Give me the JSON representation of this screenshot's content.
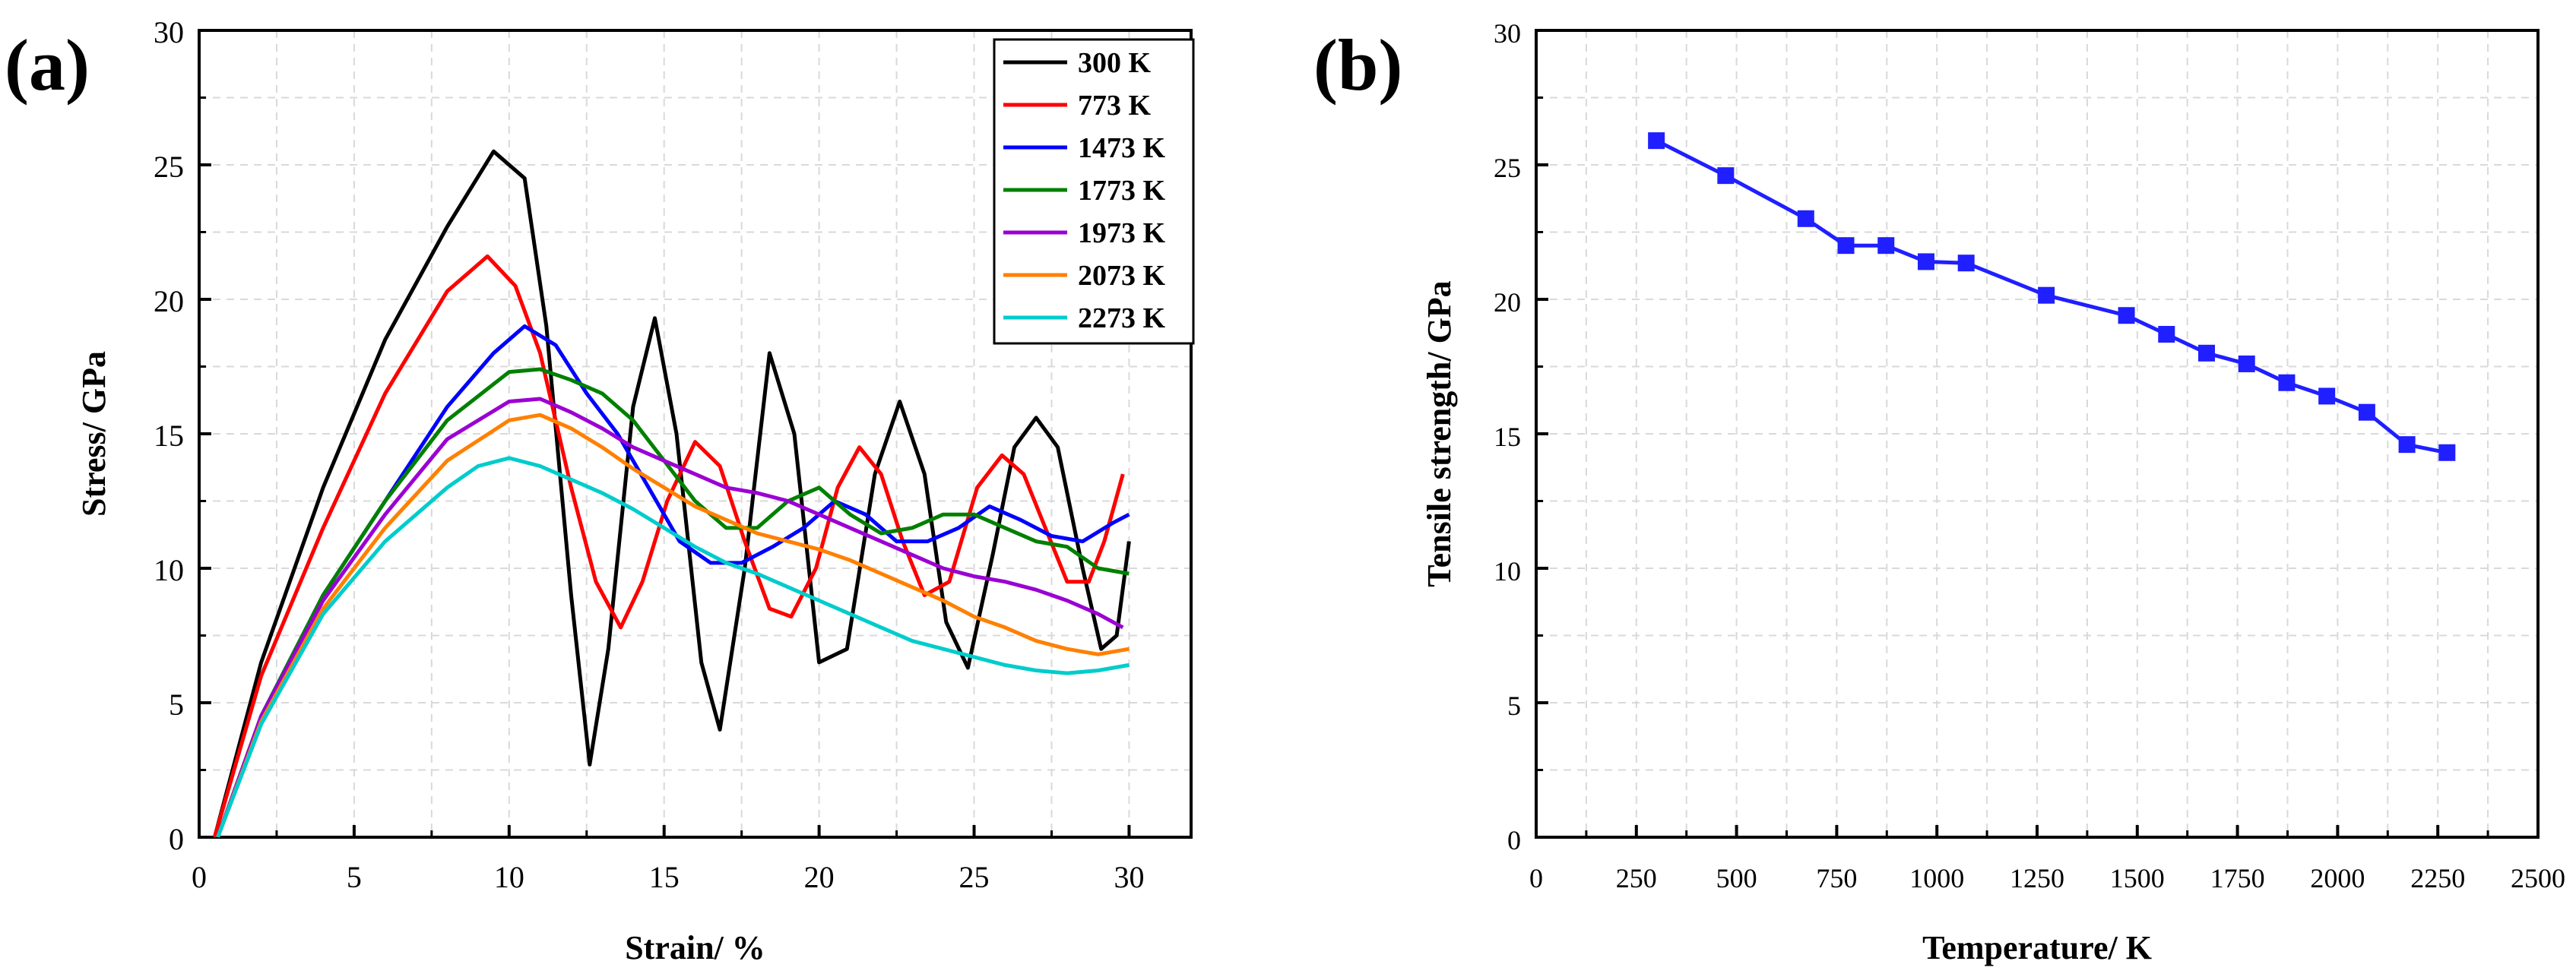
{
  "panels": [
    {
      "label": "(a)"
    },
    {
      "label": "(b)"
    }
  ],
  "chart_data": [
    {
      "type": "line",
      "xlabel": "Strain/ %",
      "ylabel": "Stress/ GPa",
      "xlim": [
        0,
        32
      ],
      "ylim": [
        0,
        30
      ],
      "xticks": [
        0,
        5,
        10,
        15,
        20,
        25,
        30
      ],
      "yticks": [
        0,
        5,
        10,
        15,
        20,
        25,
        30
      ],
      "grid": true,
      "legend_position": "top-right",
      "series": [
        {
          "name": "300 K",
          "color": "#000000",
          "x": [
            0.5,
            2,
            4,
            6,
            8,
            9.5,
            10.5,
            11.2,
            12,
            12.6,
            13.2,
            14,
            14.7,
            15.4,
            16.2,
            16.8,
            17.6,
            18.4,
            19.2,
            20,
            20.9,
            21.8,
            22.6,
            23.4,
            24.1,
            24.8,
            25.6,
            26.3,
            27,
            27.7,
            28.5,
            29.1,
            29.6,
            30
          ],
          "y": [
            0,
            6.5,
            13,
            18.5,
            22.7,
            25.5,
            24.5,
            19,
            9,
            2.7,
            7,
            16,
            19.3,
            15,
            6.5,
            4,
            10,
            18,
            15,
            6.5,
            7,
            13.5,
            16.2,
            13.5,
            8,
            6.3,
            10.5,
            14.5,
            15.6,
            14.5,
            10,
            7,
            7.5,
            11
          ]
        },
        {
          "name": "773 K",
          "color": "#ff0000",
          "x": [
            0.5,
            2,
            4,
            6,
            8,
            9.3,
            10.2,
            11,
            12,
            12.8,
            13.6,
            14.3,
            15.1,
            16,
            16.8,
            17.6,
            18.4,
            19.1,
            19.9,
            20.6,
            21.3,
            22,
            22.7,
            23.4,
            24.2,
            25.1,
            25.9,
            26.6,
            27.3,
            28,
            28.7,
            29.2,
            29.8
          ],
          "y": [
            0,
            6,
            11.5,
            16.5,
            20.3,
            21.6,
            20.5,
            18,
            13,
            9.5,
            7.8,
            9.5,
            12.5,
            14.7,
            13.8,
            11,
            8.5,
            8.2,
            10,
            13,
            14.5,
            13.5,
            11,
            9,
            9.5,
            13,
            14.2,
            13.5,
            11.5,
            9.5,
            9.5,
            11,
            13.5
          ]
        },
        {
          "name": "1473 K",
          "color": "#0000ff",
          "x": [
            0.6,
            2,
            4,
            6,
            8,
            9.5,
            10.5,
            11.5,
            12.5,
            13.5,
            14.5,
            15.5,
            16.5,
            17.5,
            18.5,
            19.5,
            20.5,
            21.5,
            22.5,
            23.5,
            24.5,
            25.5,
            26.5,
            27.5,
            28.5,
            29.5,
            30
          ],
          "y": [
            0,
            4.5,
            9,
            12.5,
            16,
            18,
            19,
            18.3,
            16.5,
            15,
            13,
            11,
            10.2,
            10.2,
            10.8,
            11.5,
            12.5,
            12,
            11,
            11,
            11.5,
            12.3,
            11.8,
            11.2,
            11,
            11.7,
            12
          ]
        },
        {
          "name": "1773 K",
          "color": "#008000",
          "x": [
            0.6,
            2,
            4,
            6,
            8,
            10,
            11,
            12,
            13,
            14,
            15,
            16,
            17,
            18,
            19,
            20,
            21,
            22,
            23,
            24,
            25,
            26,
            27,
            28,
            29,
            30
          ],
          "y": [
            0,
            4.5,
            9,
            12.5,
            15.5,
            17.3,
            17.4,
            17,
            16.5,
            15.5,
            14,
            12.5,
            11.5,
            11.5,
            12.5,
            13,
            12,
            11.3,
            11.5,
            12,
            12,
            11.5,
            11,
            10.8,
            10,
            9.8
          ]
        },
        {
          "name": "1973 K",
          "color": "#9b00d3",
          "x": [
            0.6,
            2,
            4,
            6,
            8,
            10,
            11,
            12,
            13,
            14,
            15,
            16,
            17,
            18,
            19,
            20,
            21,
            22,
            23,
            24,
            25,
            26,
            27,
            28,
            29,
            29.8
          ],
          "y": [
            0,
            4.5,
            8.8,
            12,
            14.8,
            16.2,
            16.3,
            15.8,
            15.2,
            14.5,
            14,
            13.5,
            13,
            12.8,
            12.5,
            12,
            11.5,
            11,
            10.5,
            10,
            9.7,
            9.5,
            9.2,
            8.8,
            8.3,
            7.8
          ]
        },
        {
          "name": "2073 K",
          "color": "#ff8000",
          "x": [
            0.6,
            2,
            4,
            6,
            8,
            10,
            11,
            12,
            13,
            14,
            15,
            16,
            17,
            18,
            19,
            20,
            21,
            22,
            23,
            24,
            25,
            26,
            27,
            28,
            29,
            30
          ],
          "y": [
            0,
            4.3,
            8.5,
            11.5,
            14,
            15.5,
            15.7,
            15.2,
            14.5,
            13.7,
            13,
            12.3,
            11.8,
            11.3,
            11,
            10.7,
            10.3,
            9.8,
            9.3,
            8.8,
            8.2,
            7.8,
            7.3,
            7,
            6.8,
            7
          ]
        },
        {
          "name": "2273 K",
          "color": "#00cccc",
          "x": [
            0.6,
            2,
            4,
            6,
            8,
            9,
            10,
            11,
            12,
            13,
            14,
            15,
            16,
            17,
            18,
            19,
            20,
            21,
            22,
            23,
            24,
            25,
            26,
            27,
            28,
            29,
            30
          ],
          "y": [
            0,
            4.2,
            8.3,
            11,
            13,
            13.8,
            14.1,
            13.8,
            13.3,
            12.8,
            12.2,
            11.5,
            10.8,
            10.2,
            9.8,
            9.3,
            8.8,
            8.3,
            7.8,
            7.3,
            7,
            6.7,
            6.4,
            6.2,
            6.1,
            6.2,
            6.4
          ]
        }
      ]
    },
    {
      "type": "line",
      "xlabel": "Temperature/ K",
      "ylabel": "Tensile strength/ GPa",
      "xlim": [
        0,
        2500
      ],
      "ylim": [
        0,
        30
      ],
      "xticks": [
        0,
        250,
        500,
        750,
        1000,
        1250,
        1500,
        1750,
        2000,
        2250,
        2500
      ],
      "yticks": [
        0,
        5,
        10,
        15,
        20,
        25,
        30
      ],
      "grid": true,
      "marker": "square",
      "series": [
        {
          "color": "#1f1fff",
          "x": [
            300,
            473,
            673,
            773,
            873,
            973,
            1073,
            1273,
            1473,
            1573,
            1673,
            1773,
            1873,
            1973,
            2073,
            2173,
            2273
          ],
          "y": [
            25.9,
            24.6,
            23.0,
            22.0,
            22.0,
            21.4,
            21.35,
            20.15,
            19.4,
            18.7,
            18.0,
            17.6,
            16.9,
            16.4,
            15.8,
            14.6,
            14.3
          ]
        }
      ]
    }
  ]
}
